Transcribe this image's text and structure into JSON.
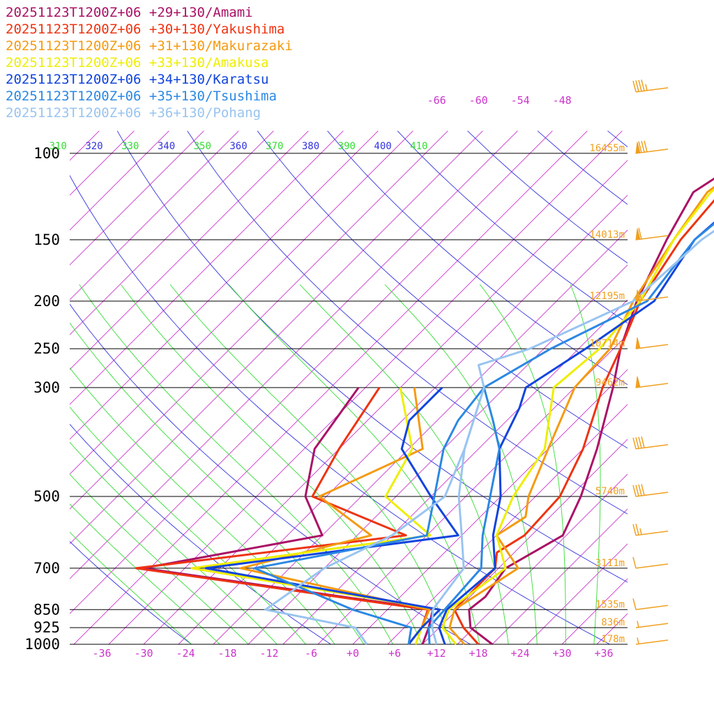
{
  "colors": {
    "isobar": "#000000",
    "isotherm": "#cc33cc",
    "dry_adiabat": "#3333dd",
    "moist_adiabat": "#33dd33",
    "height_label": "#f0a020",
    "wind_barb": "#f0a020"
  },
  "chart_data": {
    "type": "line",
    "chart_kind": "skew-t log-p sounding",
    "xlabel": "",
    "ylabel": "",
    "y_scale": "log",
    "y_inverted": true,
    "ylim": [
      1000,
      100
    ],
    "xlim_at_1000hPa": [
      -40,
      40
    ],
    "pressure_levels": [
      {
        "p": 100,
        "label": "100",
        "height": "16455m"
      },
      {
        "p": 150,
        "label": "150",
        "height": "14013m"
      },
      {
        "p": 200,
        "label": "200",
        "height": "12195m"
      },
      {
        "p": 250,
        "label": "250",
        "height": "10714m"
      },
      {
        "p": 300,
        "label": "300",
        "height": "9462m"
      },
      {
        "p": 500,
        "label": "500",
        "height": "5740m"
      },
      {
        "p": 700,
        "label": "700",
        "height": "3111m"
      },
      {
        "p": 850,
        "label": "850",
        "height": "1535m"
      },
      {
        "p": 925,
        "label": "925",
        "height": "836m"
      },
      {
        "p": 1000,
        "label": "1000",
        "height": "178m"
      }
    ],
    "temperature_ticks": [
      "-36",
      "-30",
      "-24",
      "-18",
      "-12",
      "-6",
      "+0",
      "+6",
      "+12",
      "+18",
      "+24",
      "+30",
      "+36"
    ],
    "temperature_tick_values": [
      -36,
      -30,
      -24,
      -18,
      -12,
      -6,
      0,
      6,
      12,
      18,
      24,
      30,
      36
    ],
    "upper_temperature_ticks": [
      "-66",
      "-60",
      "-54",
      "-48"
    ],
    "upper_temperature_tick_values": [
      -66,
      -60,
      -54,
      -48
    ],
    "theta_ticks": [
      "310",
      "320",
      "330",
      "340",
      "350",
      "360",
      "370",
      "380",
      "390",
      "400",
      "410"
    ],
    "theta_tick_values": [
      310,
      320,
      330,
      340,
      350,
      360,
      370,
      380,
      390,
      400,
      410
    ],
    "series": [
      {
        "name": "20251123T1200Z+06 +29+130/Amami",
        "color": "#aa1166",
        "temperature": [
          [
            1000,
            20
          ],
          [
            925,
            14.5
          ],
          [
            850,
            11.7
          ],
          [
            800,
            12.2
          ],
          [
            700,
            11
          ],
          [
            600,
            14.5
          ],
          [
            500,
            11.5
          ],
          [
            400,
            7
          ],
          [
            300,
            0.5
          ],
          [
            250,
            -4
          ],
          [
            200,
            -8.5
          ],
          [
            150,
            -13
          ],
          [
            120,
            -16
          ],
          [
            100,
            -13
          ],
          [
            85,
            -10
          ],
          [
            70,
            -2
          ],
          [
            55,
            5
          ],
          [
            45,
            13
          ],
          [
            40,
            20
          ]
        ],
        "dewpoint": [
          [
            1000,
            10
          ],
          [
            925,
            8.5
          ],
          [
            850,
            6.5
          ],
          [
            700,
            -41
          ],
          [
            600,
            -20
          ],
          [
            500,
            -28
          ],
          [
            400,
            -33.5
          ],
          [
            300,
            -36
          ]
        ]
      },
      {
        "name": "20251123T1200Z+06 +30+130/Yakushima",
        "color": "#ee3311",
        "temperature": [
          [
            1000,
            18
          ],
          [
            925,
            13.5
          ],
          [
            850,
            9.6
          ],
          [
            700,
            9.5
          ],
          [
            650,
            7.5
          ],
          [
            600,
            9
          ],
          [
            500,
            8.5
          ],
          [
            400,
            5
          ],
          [
            300,
            -1
          ],
          [
            250,
            -4
          ],
          [
            200,
            -8
          ],
          [
            150,
            -11
          ],
          [
            120,
            -12
          ],
          [
            100,
            -10
          ],
          [
            85,
            -7
          ],
          [
            70,
            -1
          ],
          [
            55,
            5
          ],
          [
            45,
            13
          ],
          [
            40,
            21
          ]
        ],
        "dewpoint": [
          [
            1000,
            8
          ],
          [
            925,
            7.5
          ],
          [
            850,
            5.8
          ],
          [
            700,
            -42
          ],
          [
            600,
            -8
          ],
          [
            500,
            -27
          ],
          [
            400,
            -30
          ],
          [
            300,
            -33
          ]
        ]
      },
      {
        "name": "20251123T1200Z+06 +31+130/Makurazaki",
        "color": "#f59a10",
        "temperature": [
          [
            1000,
            16
          ],
          [
            925,
            11.5
          ],
          [
            850,
            9.6
          ],
          [
            700,
            12.8
          ],
          [
            600,
            5
          ],
          [
            550,
            6.5
          ],
          [
            500,
            4
          ],
          [
            400,
            0
          ],
          [
            300,
            -5
          ],
          [
            250,
            -5.5
          ],
          [
            200,
            -9
          ],
          [
            150,
            -12
          ],
          [
            120,
            -14
          ],
          [
            100,
            -12
          ],
          [
            85,
            -9
          ],
          [
            70,
            -4
          ],
          [
            55,
            4
          ],
          [
            45,
            12
          ],
          [
            40,
            20
          ]
        ],
        "dewpoint": [
          [
            1000,
            8
          ],
          [
            925,
            7.5
          ],
          [
            850,
            6
          ],
          [
            700,
            -27
          ],
          [
            600,
            -13
          ],
          [
            500,
            -26
          ],
          [
            400,
            -18
          ],
          [
            300,
            -28
          ]
        ]
      },
      {
        "name": "20251123T1200Z+06 +33+130/Amakusa",
        "color": "#eeee00",
        "temperature": [
          [
            1000,
            14.8
          ],
          [
            925,
            10.5
          ],
          [
            850,
            8.8
          ],
          [
            700,
            11
          ],
          [
            600,
            5
          ],
          [
            500,
            1.8
          ],
          [
            400,
            -0.5
          ],
          [
            300,
            -8
          ],
          [
            250,
            -7
          ],
          [
            200,
            -8
          ],
          [
            150,
            -12
          ],
          [
            120,
            -13.5
          ],
          [
            100,
            -12
          ],
          [
            85,
            -11
          ],
          [
            70,
            -6
          ],
          [
            55,
            3
          ],
          [
            45,
            10
          ],
          [
            40,
            19
          ]
        ],
        "dewpoint": [
          [
            1000,
            9
          ],
          [
            925,
            7.5
          ],
          [
            850,
            7.5
          ],
          [
            700,
            -34
          ],
          [
            600,
            -4.5
          ],
          [
            500,
            -16.5
          ],
          [
            400,
            -19.5
          ],
          [
            300,
            -30
          ]
        ]
      },
      {
        "name": "20251123T1200Z+06 +34+130/Karatsu",
        "color": "#1144dd",
        "temperature": [
          [
            1000,
            13.2
          ],
          [
            925,
            10
          ],
          [
            850,
            8.5
          ],
          [
            700,
            9.5
          ],
          [
            600,
            4.5
          ],
          [
            500,
            0
          ],
          [
            400,
            -7
          ],
          [
            330,
            -10
          ],
          [
            300,
            -12
          ],
          [
            250,
            -9
          ],
          [
            200,
            -6
          ],
          [
            150,
            -9
          ],
          [
            120,
            -8
          ],
          [
            100,
            -5
          ],
          [
            70,
            -2
          ],
          [
            55,
            4
          ],
          [
            45,
            12
          ],
          [
            40,
            21
          ]
        ],
        "dewpoint": [
          [
            1000,
            8
          ],
          [
            925,
            7.5
          ],
          [
            850,
            7.5
          ],
          [
            700,
            -32
          ],
          [
            600,
            -0.5
          ],
          [
            500,
            -10
          ],
          [
            400,
            -21
          ],
          [
            350,
            -24
          ],
          [
            300,
            -24
          ]
        ]
      },
      {
        "name": "20251123T1200Z+06 +35+130/Tsushima",
        "color": "#2b88e3",
        "temperature": [
          [
            1000,
            11
          ],
          [
            925,
            8.5
          ],
          [
            850,
            8.2
          ],
          [
            700,
            7.5
          ],
          [
            600,
            3
          ],
          [
            500,
            -1.5
          ],
          [
            400,
            -7
          ],
          [
            350,
            -12
          ],
          [
            300,
            -18
          ],
          [
            250,
            -14
          ],
          [
            200,
            -7
          ],
          [
            150,
            -9
          ],
          [
            120,
            -7.5
          ],
          [
            100,
            -3
          ],
          [
            70,
            3
          ],
          [
            55,
            7
          ],
          [
            45,
            14
          ],
          [
            40,
            22
          ]
        ],
        "dewpoint": [
          [
            1000,
            8
          ],
          [
            925,
            6
          ],
          [
            850,
            -5
          ],
          [
            700,
            -25
          ],
          [
            600,
            -5
          ],
          [
            500,
            -9.5
          ],
          [
            400,
            -15
          ],
          [
            350,
            -17
          ],
          [
            300,
            -18
          ]
        ]
      },
      {
        "name": "20251123T1200Z+06 +36+130/Pohang",
        "color": "#99c4f0",
        "temperature": [
          [
            1000,
            12
          ],
          [
            925,
            9
          ],
          [
            850,
            6.5
          ],
          [
            700,
            5
          ],
          [
            600,
            0
          ],
          [
            500,
            -6
          ],
          [
            400,
            -12
          ],
          [
            300,
            -18
          ],
          [
            270,
            -22
          ],
          [
            250,
            -17
          ],
          [
            200,
            -9
          ],
          [
            150,
            -8
          ],
          [
            120,
            -5
          ],
          [
            100,
            1
          ],
          [
            70,
            5
          ],
          [
            55,
            8
          ],
          [
            45,
            15
          ],
          [
            40,
            23
          ]
        ],
        "dewpoint": [
          [
            1000,
            2
          ],
          [
            925,
            -2
          ],
          [
            850,
            -17.5
          ],
          [
            700,
            -15
          ],
          [
            600,
            -10
          ],
          [
            500,
            -8
          ],
          [
            400,
            -12
          ],
          [
            300,
            -18
          ]
        ]
      }
    ],
    "wind_barbs": [
      {
        "p": 75,
        "knots": 45
      },
      {
        "p": 100,
        "knots": 80
      },
      {
        "p": 150,
        "knots": 60
      },
      {
        "p": 200,
        "knots": 55
      },
      {
        "p": 250,
        "knots": 50
      },
      {
        "p": 300,
        "knots": 50
      },
      {
        "p": 400,
        "knots": 40
      },
      {
        "p": 500,
        "knots": 40
      },
      {
        "p": 600,
        "knots": 25
      },
      {
        "p": 700,
        "knots": 10
      },
      {
        "p": 850,
        "knots": 10
      },
      {
        "p": 925,
        "knots": 5
      },
      {
        "p": 1000,
        "knots": 5
      }
    ]
  }
}
